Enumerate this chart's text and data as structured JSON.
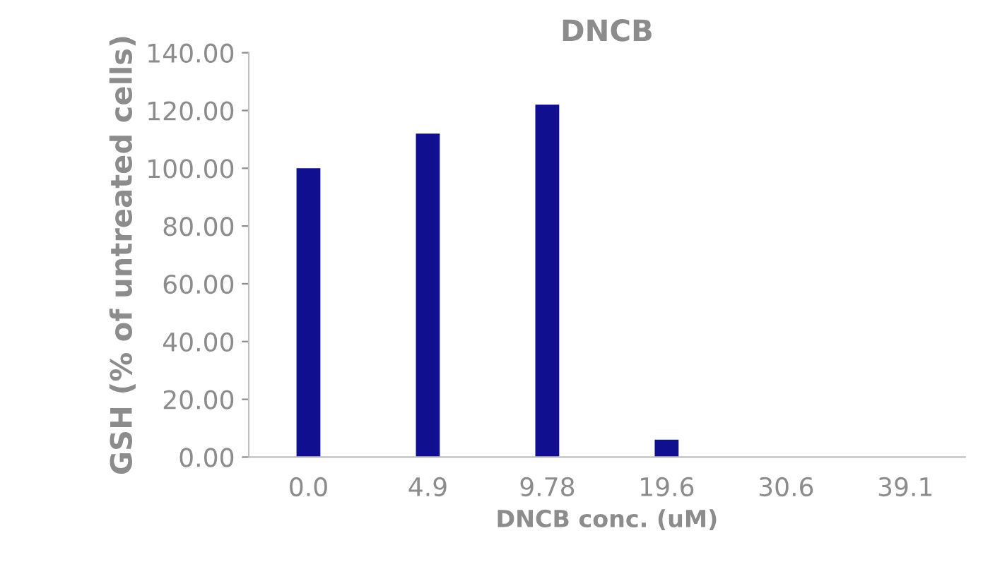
{
  "chart_data": {
    "type": "bar",
    "title": "DNCB",
    "xlabel": "DNCB conc. (uM)",
    "ylabel": "GSH (% of untreated cells)",
    "categories": [
      "0.0",
      "4.9",
      "9.78",
      "19.6",
      "30.6",
      "39.1"
    ],
    "values": [
      100,
      112,
      122,
      6,
      0,
      0
    ],
    "color": "#0f0f8f",
    "ylim": [
      0,
      140
    ],
    "yticks": [
      {
        "value": 0,
        "label": "0.00"
      },
      {
        "value": 20,
        "label": "20.00"
      },
      {
        "value": 40,
        "label": "40.00"
      },
      {
        "value": 60,
        "label": "60.00"
      },
      {
        "value": 80,
        "label": "80.00"
      },
      {
        "value": 100,
        "label": "100.00"
      },
      {
        "value": 120,
        "label": "120.00"
      },
      {
        "value": 140,
        "label": "140.00"
      }
    ],
    "grid": false,
    "legend": false
  }
}
